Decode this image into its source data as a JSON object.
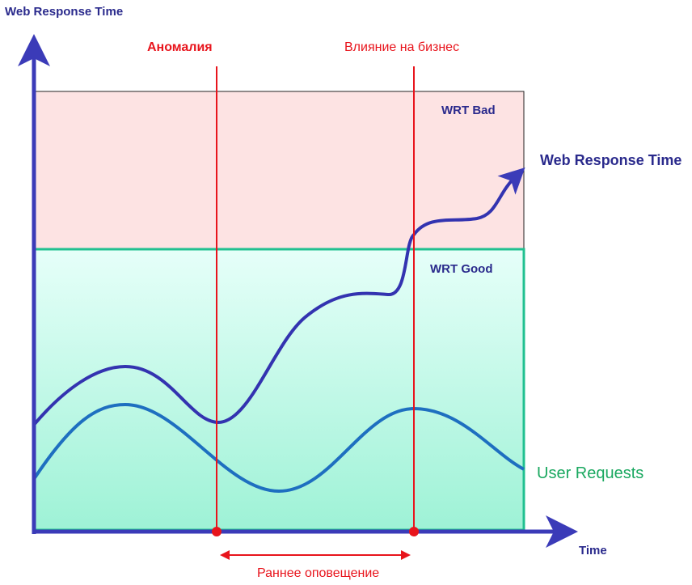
{
  "y_axis_label": "Web Response Time",
  "x_axis_label": "Time",
  "markers": {
    "anomaly": "Аномалия",
    "business_impact": "Влияние на бизнес"
  },
  "zones": {
    "bad": "WRT Bad",
    "good": "WRT Good"
  },
  "curves": {
    "response_time": "Web Response Time",
    "user_requests": "User Requests"
  },
  "interval_label": "Раннее оповещение"
}
